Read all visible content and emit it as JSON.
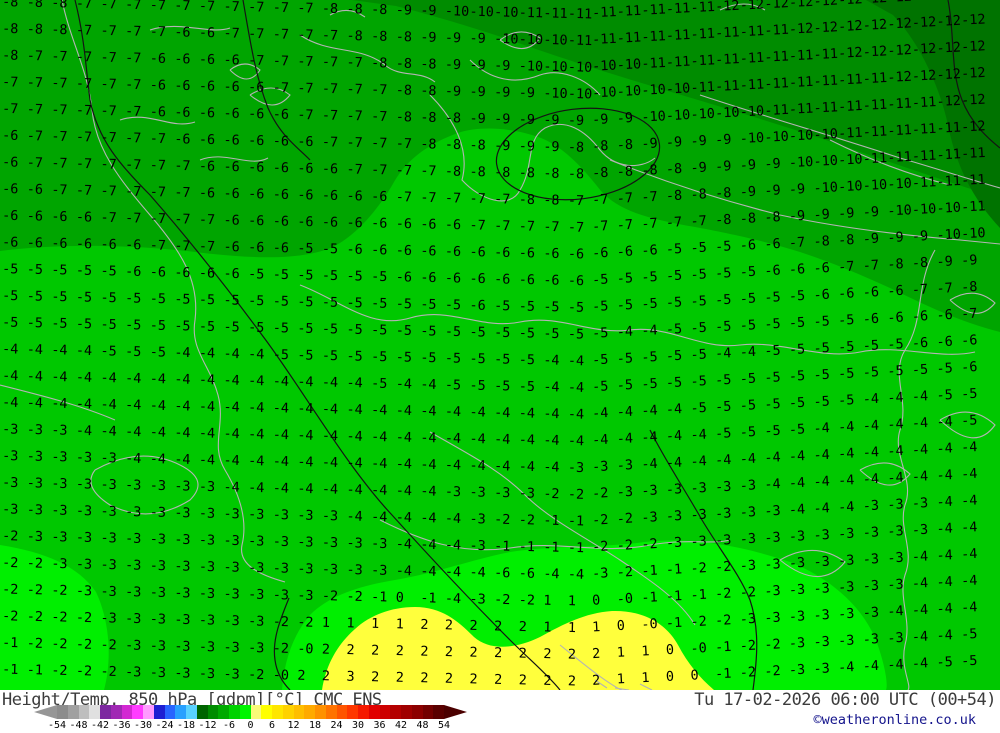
{
  "map": {
    "model_label": "CMC ENS",
    "colors": {
      "base": "#00c800",
      "light": "#00ef00",
      "band_dark": "#00a500",
      "band_darker": "#008c00",
      "band_darkest": "#007300",
      "warm_yellow": "#ffff3c",
      "coast_gray": "#b4b4b4",
      "border_black": "#141414",
      "value_text": "#000000"
    },
    "grid": {
      "columns": 40,
      "col_start": 2,
      "col_step": 24.6,
      "row_start": 18,
      "row_step": 26.7,
      "rows": [
        "-8 -8 -8 -7 -7 -7 -7 -7 -7 -7 -7 -7 -7 -8 -8 -8 -9 -9 -10 -10 -10 -11 -11 -11 -11 -11 -11 -11 -11 -12 -12 -12 -12 -12 -12 -12 -12 -12 -12 -12",
        "-8 -8 -8 -7 -7 -7 -7 -6 -6 -7 -7 -7 -7 -7 -8 -8 -8 -9 -9 -9 -10 -10 -10 -11 -11 -11 -11 -11 -11 -11 -11 -11 -12 -12 -12 -12 -12 -12 -12 -12",
        "-8 -7 -7 -7 -7 -7 -6 -6 -6 -6 -7 -7 -7 -7 -7 -8 -8 -8 -9 -9 -9 -10 -10 -10 -10 -10 -11 -11 -11 -11 -11 -11 -11 -11 -12 -12 -12 -12 -12 -12",
        "-7 -7 -7 -7 -7 -7 -6 -6 -6 -6 -6 -7 -7 -7 -7 -7 -8 -8 -9 -9 -9 -9 -10 -10 -10 -10 -10 -10 -11 -11 -11 -11 -11 -11 -11 -11 -12 -12 -12 -12",
        "-7 -7 -7 -7 -7 -7 -6 -6 -6 -6 -6 -6 -7 -7 -7 -7 -8 -8 -8 -9 -9 -9 -9 -9 -9 -9 -10 -10 -10 -10 -10 -11 -11 -11 -11 -11 -11 -11 -12 -12",
        "-6 -7 -7 -7 -7 -7 -7 -6 -6 -6 -6 -6 -6 -7 -7 -7 -7 -8 -8 -8 -9 -9 -9 -8 -8 -8 -9 -9 -9 -9 -10 -10 -10 -10 -11 -11 -11 -11 -11 -12",
        "-6 -7 -7 -7 -7 -7 -7 -7 -6 -6 -6 -6 -6 -6 -7 -7 -7 -7 -8 -8 -8 -8 -8 -8 -8 -8 -8 -8 -9 -9 -9 -9 -10 -10 -10 -11 -11 -11 -11 -11",
        "-6 -6 -7 -7 -7 -7 -7 -7 -6 -6 -6 -6 -6 -6 -6 -6 -7 -7 -7 -7 -7 -8 -8 -7 -7 -7 -7 -8 -8 -8 -9 -9 -9 -10 -10 -10 -10 -11 -11 -11",
        "-6 -6 -6 -6 -7 -7 -7 -7 -7 -6 -6 -6 -6 -6 -6 -6 -6 -6 -6 -7 -7 -7 -7 -7 -7 -7 -7 -7 -7 -8 -8 -8 -9 -9 -9 -9 -10 -10 -10 -11",
        "-6 -6 -6 -6 -6 -6 -7 -7 -7 -6 -6 -6 -5 -5 -6 -6 -6 -6 -6 -6 -6 -6 -6 -6 -6 -6 -6 -5 -5 -5 -6 -6 -7 -8 -8 -9 -9 -9 -10 -10",
        "-5 -5 -5 -5 -5 -6 -6 -6 -6 -6 -5 -5 -5 -5 -5 -5 -6 -6 -6 -6 -6 -6 -6 -6 -5 -5 -5 -5 -5 -5 -5 -6 -6 -6 -7 -7 -8 -8 -9 -9",
        "-5 -5 -5 -5 -5 -5 -5 -5 -5 -5 -5 -5 -5 -5 -5 -5 -5 -5 -5 -6 -5 -5 -5 -5 -5 -5 -5 -5 -5 -5 -5 -5 -5 -6 -6 -6 -6 -7 -7 -8",
        "-5 -5 -5 -5 -5 -5 -5 -5 -5 -5 -5 -5 -5 -5 -5 -5 -5 -5 -5 -5 -5 -5 -5 -5 -5 -4 -4 -5 -5 -5 -5 -5 -5 -5 -5 -6 -6 -6 -6 -7",
        "-4 -4 -4 -4 -5 -5 -5 -4 -4 -4 -4 -5 -5 -5 -5 -5 -5 -5 -5 -5 -5 -5 -4 -4 -5 -5 -5 -5 -5 -4 -4 -5 -5 -5 -5 -5 -5 -6 -6 -6",
        "-4 -4 -4 -4 -4 -4 -4 -4 -4 -4 -4 -4 -4 -4 -4 -5 -4 -4 -5 -5 -5 -5 -4 -4 -5 -5 -5 -5 -5 -5 -5 -5 -5 -5 -5 -5 -5 -5 -5 -6",
        "-4 -4 -4 -4 -4 -4 -4 -4 -4 -4 -4 -4 -4 -4 -4 -4 -4 -4 -4 -4 -4 -4 -4 -4 -4 -4 -4 -4 -5 -5 -5 -5 -5 -5 -5 -4 -4 -4 -5 -5",
        "-3 -3 -3 -4 -4 -4 -4 -4 -4 -4 -4 -4 -4 -4 -4 -4 -4 -4 -4 -4 -4 -4 -4 -4 -4 -4 -4 -4 -4 -5 -5 -5 -5 -4 -4 -4 -4 -4 -4 -5",
        "-3 -3 -3 -3 -3 -4 -4 -4 -4 -4 -4 -4 -4 -4 -4 -4 -4 -4 -4 -4 -4 -4 -4 -3 -3 -3 -4 -4 -4 -4 -4 -4 -4 -4 -4 -4 -4 -4 -4 -4",
        "-3 -3 -3 -3 -3 -3 -3 -3 -3 -4 -4 -4 -4 -4 -4 -4 -4 -4 -3 -3 -3 -3 -2 -2 -2 -3 -3 -3 -3 -3 -3 -4 -4 -4 -4 -4 -4 -4 -4 -4",
        "-3 -3 -3 -3 -3 -3 -3 -3 -3 -3 -3 -3 -3 -3 -4 -4 -4 -4 -4 -3 -2 -2 -1 -1 -2 -2 -3 -3 -3 -3 -3 -3 -4 -4 -4 -3 -3 -3 -4 -4",
        "-2 -3 -3 -3 -3 -3 -3 -3 -3 -3 -3 -3 -3 -3 -3 -3 -4 -4 -4 -3 -1 -1 -1 -1 -2 -2 -2 -3 -3 -3 -3 -3 -3 -3 -3 -3 -3 -3 -4 -4",
        "-2 -2 -3 -3 -3 -3 -3 -3 -3 -3 -3 -3 -3 -3 -3 -3 -4 -4 -4 -4 -6 -6 -4 -4 -3 -2 -1 -1 -2 -2 -3 -3 -3 -3 -3 -3 -3 -4 -4 -4",
        "-2 -2 -2 -3 -3 -3 -3 -3 -3 -3 -3 -3 -3 -2 -2 -1 0 -1 -4 -3 -2 -2 1 1 0 -0 -1 -1 -1 -2 -2 -3 -3 -3 -3 -3 -3 -4 -4 -4",
        "-2 -2 -2 -2 -3 -3 -3 -3 -3 -3 -3 -2 -2 1 1 1 1 2 2 2 2 2 1 1 1 0 -0 -1 -2 -2 -3 -3 -3 -3 -3 -3 -4 -4 -4 -4",
        "-1 -2 -2 -2 -2 -3 -3 -3 -3 -3 -3 -2 -0 2 2 2 2 2 2 2 2 2 2 2 2 1 1 0 -0 -1 -2 -2 -3 -3 -3 -3 -3 -4 -4 -5",
        "-1 -1 -2 -2 -2 -3 -3 -3 -3 -3 -2 -0 2 2 3 2 2 2 2 2 2 2 2 2 2 1 1 0 0 -1 -2 -2 -3 -3 -4 -4 -4 -4 -5 -5"
      ]
    }
  },
  "footer": {
    "title": "Height/Temp. 850 hPa [gdpm][°C] CMC ENS",
    "datetime": "Tu 17-02-2026 06:00 UTC (00+54)",
    "copyright": "©weatheronline.co.uk",
    "text_color": "#3c3c3c",
    "copyright_color": "#14148c"
  },
  "legend": {
    "unit_min": -54,
    "unit_max": 54,
    "ticks": [
      "-54",
      "-48",
      "-42",
      "-36",
      "-30",
      "-24",
      "-18",
      "-12",
      "-6",
      "0",
      "6",
      "12",
      "18",
      "24",
      "30",
      "36",
      "42",
      "48",
      "54"
    ],
    "cells": [
      "#8c8c8c",
      "#a0a0a0",
      "#bebebe",
      "#e0e0e0",
      "#7d28a0",
      "#a028b4",
      "#d228d2",
      "#ff3cff",
      "#ff9bff",
      "#1e1ed2",
      "#2864ff",
      "#28a0ff",
      "#5ad2ff",
      "#006400",
      "#008c00",
      "#00aa00",
      "#00d200",
      "#00f500",
      "#fafa78",
      "#ffff00",
      "#ffe600",
      "#ffd200",
      "#ffbe00",
      "#ffaa00",
      "#ff9100",
      "#ff7300",
      "#ff5500",
      "#ff3700",
      "#f51900",
      "#e10000",
      "#cd0000",
      "#b40000",
      "#a00000",
      "#8c0000",
      "#730000",
      "#5a0000"
    ],
    "arrow_left": "#969696",
    "arrow_right": "#4b0000"
  }
}
